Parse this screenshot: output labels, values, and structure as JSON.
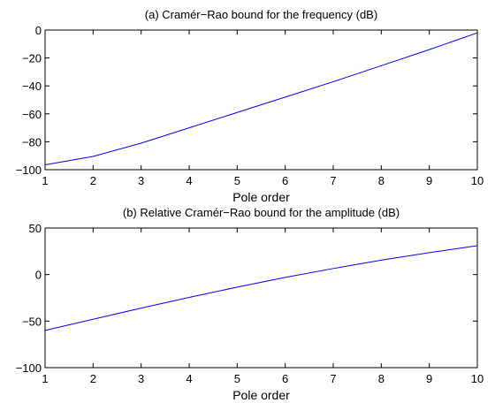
{
  "chart_data": [
    {
      "type": "line",
      "title": "(a) Cramér−Rao bound for the frequency (dB)",
      "xlabel": "Pole order",
      "ylabel": "",
      "xlim": [
        1,
        10
      ],
      "ylim": [
        -100,
        0
      ],
      "xticks": [
        1,
        2,
        3,
        4,
        5,
        6,
        7,
        8,
        9,
        10
      ],
      "xtick_labels": [
        "1",
        "2",
        "3",
        "4",
        "5",
        "6",
        "7",
        "8",
        "9",
        "10"
      ],
      "yticks": [
        -100,
        -80,
        -60,
        -40,
        -20,
        0
      ],
      "ytick_labels": [
        "−100",
        "−80",
        "−60",
        "−40",
        "−20",
        "0"
      ],
      "grid": false,
      "series": [
        {
          "color": "#0000ff",
          "x": [
            1,
            2,
            3,
            4,
            5,
            6,
            7,
            8,
            9,
            10
          ],
          "y": [
            -96.5,
            -90.5,
            -81,
            -70,
            -59,
            -48,
            -37,
            -25.5,
            -14,
            -2
          ]
        }
      ]
    },
    {
      "type": "line",
      "title": "(b) Relative Cramér−Rao bound for the amplitude (dB)",
      "xlabel": "Pole order",
      "ylabel": "",
      "xlim": [
        1,
        10
      ],
      "ylim": [
        -100,
        50
      ],
      "xticks": [
        1,
        2,
        3,
        4,
        5,
        6,
        7,
        8,
        9,
        10
      ],
      "xtick_labels": [
        "1",
        "2",
        "3",
        "4",
        "5",
        "6",
        "7",
        "8",
        "9",
        "10"
      ],
      "yticks": [
        -100,
        -50,
        0,
        50
      ],
      "ytick_labels": [
        "−100",
        "−50",
        "0",
        "50"
      ],
      "grid": false,
      "series": [
        {
          "color": "#0000ff",
          "x": [
            1,
            2,
            3,
            4,
            5,
            6,
            7,
            8,
            9,
            10
          ],
          "y": [
            -60,
            -48,
            -36,
            -24.5,
            -13.5,
            -3,
            6.5,
            15.5,
            23.5,
            31
          ]
        }
      ]
    }
  ]
}
